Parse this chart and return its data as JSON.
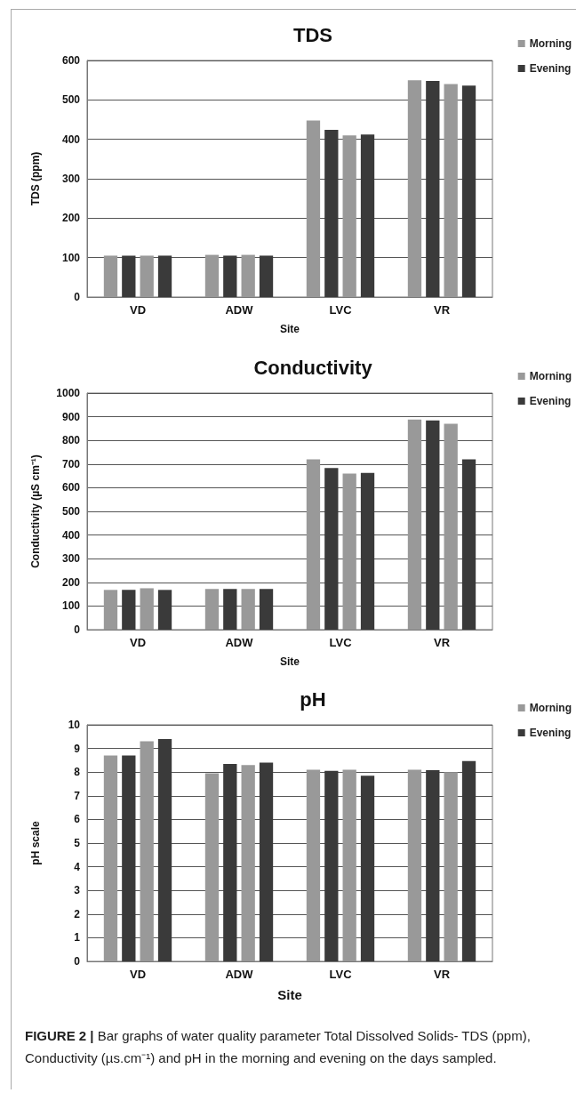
{
  "chart_data": [
    {
      "type": "bar",
      "title": "TDS",
      "xlabel": "Site",
      "ylabel": "TDS (ppm)",
      "categories": [
        "VD",
        "ADW",
        "LVC",
        "VR"
      ],
      "series": [
        {
          "name": "Morning",
          "color": "#999999",
          "values": [
            105,
            107,
            448,
            550
          ]
        },
        {
          "name": "Evening",
          "color": "#3a3a3a",
          "values": [
            105,
            105,
            424,
            548
          ]
        },
        {
          "color": "#999999",
          "values": [
            105,
            107,
            410,
            540
          ]
        },
        {
          "color": "#3a3a3a",
          "values": [
            105,
            105,
            412,
            536
          ]
        }
      ],
      "ylim": [
        0,
        600
      ],
      "yticks": [
        0,
        100,
        200,
        300,
        400,
        500,
        600
      ],
      "grid": "y",
      "legend": "right"
    },
    {
      "type": "bar",
      "title": "Conductivity",
      "xlabel": "Site",
      "ylabel": "Conductivity (µS cm⁻¹)",
      "categories": [
        "VD",
        "ADW",
        "LVC",
        "VR"
      ],
      "series": [
        {
          "name": "Morning",
          "color": "#999999",
          "values": [
            168,
            172,
            720,
            888
          ]
        },
        {
          "name": "Evening",
          "color": "#3a3a3a",
          "values": [
            168,
            172,
            683,
            884
          ]
        },
        {
          "color": "#999999",
          "values": [
            175,
            172,
            660,
            870
          ]
        },
        {
          "color": "#3a3a3a",
          "values": [
            168,
            172,
            663,
            720
          ]
        }
      ],
      "ylim": [
        0,
        1000
      ],
      "yticks": [
        0,
        100,
        200,
        300,
        400,
        500,
        600,
        700,
        800,
        900,
        1000
      ],
      "grid": "y",
      "legend": "right"
    },
    {
      "type": "bar",
      "title": "pH",
      "xlabel": "Site",
      "ylabel": "pH scale",
      "categories": [
        "VD",
        "ADW",
        "LVC",
        "VR"
      ],
      "series": [
        {
          "name": "Morning",
          "color": "#999999",
          "values": [
            8.7,
            7.95,
            8.1,
            8.1
          ]
        },
        {
          "name": "Evening",
          "color": "#3a3a3a",
          "values": [
            8.7,
            8.35,
            8.05,
            8.08
          ]
        },
        {
          "color": "#999999",
          "values": [
            9.3,
            8.3,
            8.1,
            8.0
          ]
        },
        {
          "color": "#3a3a3a",
          "values": [
            9.4,
            8.4,
            7.85,
            8.47
          ]
        }
      ],
      "ylim": [
        0,
        10
      ],
      "yticks": [
        0,
        1,
        2,
        3,
        4,
        5,
        6,
        7,
        8,
        9,
        10
      ],
      "grid": "y",
      "legend": "right",
      "annotations": [
        "FIGURE 2 |",
        "Bar graphs of water quality parameter Total Dissolved Solids- TDS (ppm), Conductivity (µs.cm⁻¹) and pH in the morning and evening on the days sampled."
      ]
    }
  ]
}
